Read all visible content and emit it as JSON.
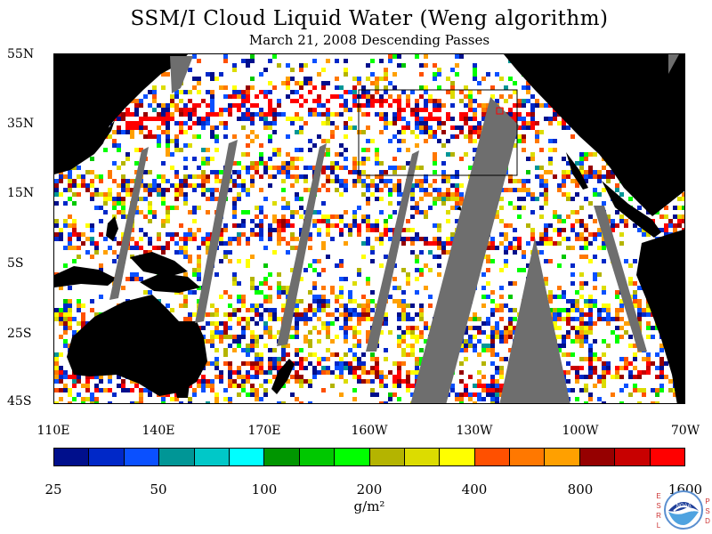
{
  "title": "SSM/I Cloud Liquid Water (Weng algorithm)",
  "subtitle": "March 21, 2008  Descending Passes",
  "map": {
    "latitude_labels": [
      "55N",
      "35N",
      "15N",
      "5S",
      "25S",
      "45S"
    ],
    "longitude_labels": [
      "110E",
      "140E",
      "170E",
      "160W",
      "130W",
      "100W",
      "70W"
    ],
    "land_color": "#000000",
    "missing_data_color": "#6e6e6e",
    "no_cloud_color": "#ffffff",
    "boundary_lines": "white"
  },
  "colorbar": {
    "colors": [
      "#000f8c",
      "#0028c8",
      "#0a50ff",
      "#009696",
      "#00c8c8",
      "#00ffff",
      "#009600",
      "#00c800",
      "#00ff00",
      "#b4b400",
      "#dcdc00",
      "#ffff00",
      "#ff5000",
      "#ff7800",
      "#ffa000",
      "#960000",
      "#c80000",
      "#ff0000"
    ],
    "tick_labels": [
      "25",
      "50",
      "100",
      "200",
      "400",
      "800",
      "1600"
    ],
    "units": "g/m²"
  },
  "logo": {
    "left_letters": [
      "E",
      "S",
      "R",
      "L"
    ],
    "right_letters": [
      "P",
      "S",
      "D"
    ],
    "seal_text": "NOAA",
    "icon": "noaa-seal-icon"
  }
}
